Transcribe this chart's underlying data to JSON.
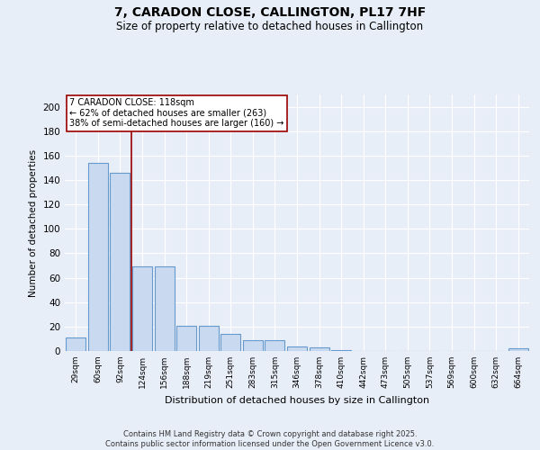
{
  "title": "7, CARADON CLOSE, CALLINGTON, PL17 7HF",
  "subtitle": "Size of property relative to detached houses in Callington",
  "xlabel": "Distribution of detached houses by size in Callington",
  "ylabel": "Number of detached properties",
  "categories": [
    "29sqm",
    "60sqm",
    "92sqm",
    "124sqm",
    "156sqm",
    "188sqm",
    "219sqm",
    "251sqm",
    "283sqm",
    "315sqm",
    "346sqm",
    "378sqm",
    "410sqm",
    "442sqm",
    "473sqm",
    "505sqm",
    "537sqm",
    "569sqm",
    "600sqm",
    "632sqm",
    "664sqm"
  ],
  "values": [
    11,
    154,
    146,
    69,
    69,
    21,
    21,
    14,
    9,
    9,
    4,
    3,
    1,
    0,
    0,
    0,
    0,
    0,
    0,
    0,
    2
  ],
  "bar_color": "#c9daf0",
  "bar_edge_color": "#6699cc",
  "vline_color": "#990000",
  "annotation_text": "7 CARADON CLOSE: 118sqm\n← 62% of detached houses are smaller (263)\n38% of semi-detached houses are larger (160) →",
  "annotation_box_color": "white",
  "annotation_box_edge": "#990000",
  "ylim": [
    0,
    210
  ],
  "yticks": [
    0,
    20,
    40,
    60,
    80,
    100,
    120,
    140,
    160,
    180,
    200
  ],
  "background_color": "#e8eef8",
  "grid_color": "white",
  "footer_line1": "Contains HM Land Registry data © Crown copyright and database right 2025.",
  "footer_line2": "Contains public sector information licensed under the Open Government Licence v3.0."
}
